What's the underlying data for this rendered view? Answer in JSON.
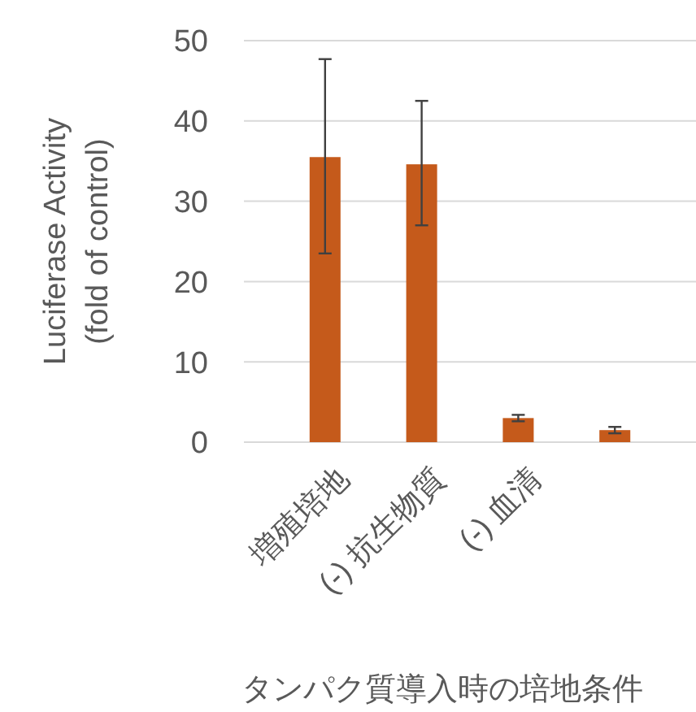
{
  "chart_data": {
    "type": "bar",
    "ylabel": "Luciferase Activity\n(fold of control)",
    "xlabel": "タンパク質導入時の培地条件",
    "categories": [
      "増殖培地",
      "(-) 抗生物質",
      "(-) 血清",
      null
    ],
    "values": [
      35.5,
      34.6,
      3.0,
      1.5
    ],
    "errors": [
      [
        23.5,
        47.7
      ],
      [
        27.0,
        42.5
      ],
      [
        2.6,
        3.4
      ],
      [
        1.1,
        1.9
      ]
    ],
    "color": "#c55a1b",
    "ylim": [
      0,
      50
    ],
    "yticks": [
      0,
      10,
      20,
      30,
      40,
      50
    ],
    "grid": "y"
  }
}
